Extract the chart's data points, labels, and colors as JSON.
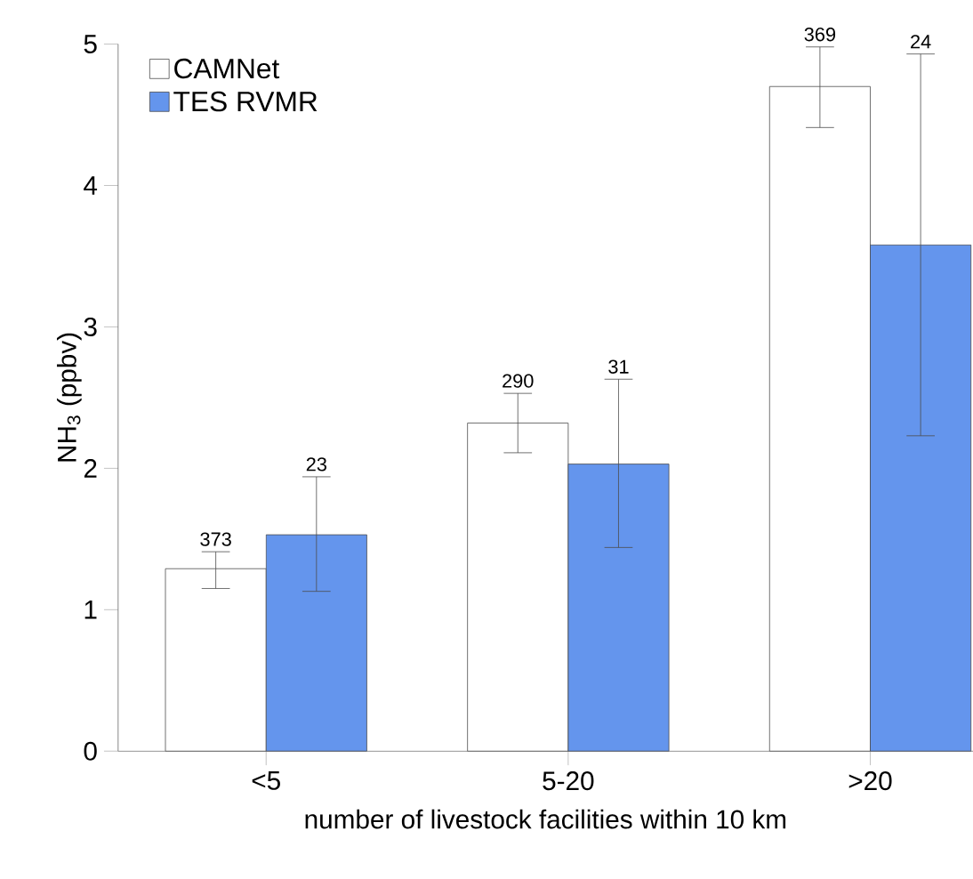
{
  "chart_data": {
    "type": "bar",
    "xlabel": "number of livestock facilities within 10 km",
    "ylabel": "NH$_{3}$ (ppbv)",
    "categories": [
      "<5",
      "5-20",
      ">20"
    ],
    "series": [
      {
        "name": "CAMNet",
        "color": "#ffffff",
        "values": [
          1.29,
          2.32,
          4.7
        ],
        "errors": [
          [
            1.15,
            1.41
          ],
          [
            2.11,
            2.53
          ],
          [
            4.41,
            4.98
          ]
        ]
      },
      {
        "name": "TES RVMR",
        "color": "#6495ed",
        "values": [
          1.53,
          2.03,
          3.58
        ],
        "errors": [
          [
            1.13,
            1.94
          ],
          [
            1.44,
            2.63
          ],
          [
            2.23,
            4.93
          ]
        ]
      }
    ],
    "annotations": [
      "373",
      "23",
      "290",
      "31",
      "369",
      "24"
    ],
    "ylim": [
      0,
      5
    ],
    "yticks": [
      0,
      1,
      2,
      3,
      4,
      5
    ],
    "legend": "top left"
  }
}
